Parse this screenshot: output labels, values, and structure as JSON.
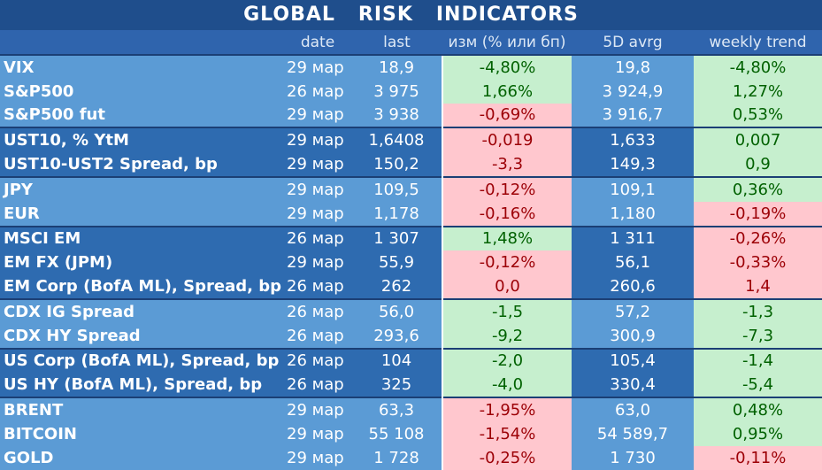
{
  "title": "GLOBAL   RISK   INDICATORS",
  "headers": {
    "name": "",
    "date": "date",
    "last": "last",
    "change": "изм (% или бп)",
    "avg5d": "5D avrg",
    "weekly": "weekly trend"
  },
  "rows": [
    {
      "name": "VIX",
      "date": "29 мар",
      "last": "18,9",
      "change": "-4,80%",
      "change_sign": "pos",
      "avg5d": "19,8",
      "weekly": "-4,80%",
      "weekly_sign": "pos",
      "group_start": true,
      "shade": "light"
    },
    {
      "name": "S&P500",
      "date": "26 мар",
      "last": "3 975",
      "change": "1,66%",
      "change_sign": "pos",
      "avg5d": "3 924,9",
      "weekly": "1,27%",
      "weekly_sign": "pos",
      "shade": "light"
    },
    {
      "name": "S&P500 fut",
      "date": "29 мар",
      "last": "3 938",
      "change": "-0,69%",
      "change_sign": "neg",
      "avg5d": "3 916,7",
      "weekly": "0,53%",
      "weekly_sign": "pos",
      "shade": "light"
    },
    {
      "name": "UST10, % YtM",
      "date": "29 мар",
      "last": "1,6408",
      "change": "-0,019",
      "change_sign": "neg",
      "avg5d": "1,633",
      "weekly": "0,007",
      "weekly_sign": "pos",
      "group_start": true,
      "shade": "dark"
    },
    {
      "name": "UST10-UST2 Spread, bp",
      "date": "29 мар",
      "last": "150,2",
      "change": "-3,3",
      "change_sign": "neg",
      "avg5d": "149,3",
      "weekly": "0,9",
      "weekly_sign": "pos",
      "shade": "dark"
    },
    {
      "name": "JPY",
      "date": "29 мар",
      "last": "109,5",
      "change": "-0,12%",
      "change_sign": "neg",
      "avg5d": "109,1",
      "weekly": "0,36%",
      "weekly_sign": "pos",
      "group_start": true,
      "shade": "light"
    },
    {
      "name": "EUR",
      "date": "29 мар",
      "last": "1,178",
      "change": "-0,16%",
      "change_sign": "neg",
      "avg5d": "1,180",
      "weekly": "-0,19%",
      "weekly_sign": "neg",
      "shade": "light"
    },
    {
      "name": "MSCI EM",
      "date": "26 мар",
      "last": "1 307",
      "change": "1,48%",
      "change_sign": "pos",
      "avg5d": "1 311",
      "weekly": "-0,26%",
      "weekly_sign": "neg",
      "group_start": true,
      "shade": "dark"
    },
    {
      "name": "EM FX (JPM)",
      "date": "29 мар",
      "last": "55,9",
      "change": "-0,12%",
      "change_sign": "neg",
      "avg5d": "56,1",
      "weekly": "-0,33%",
      "weekly_sign": "neg",
      "shade": "dark"
    },
    {
      "name": "EM Corp (BofA ML), Spread, bp",
      "date": "26 мар",
      "last": "262",
      "change": "0,0",
      "change_sign": "neg",
      "avg5d": "260,6",
      "weekly": "1,4",
      "weekly_sign": "neg",
      "shade": "dark"
    },
    {
      "name": "CDX IG Spread",
      "date": "26 мар",
      "last": "56,0",
      "change": "-1,5",
      "change_sign": "pos",
      "avg5d": "57,2",
      "weekly": "-1,3",
      "weekly_sign": "pos",
      "group_start": true,
      "shade": "light"
    },
    {
      "name": "CDX HY Spread",
      "date": "26 мар",
      "last": "293,6",
      "change": "-9,2",
      "change_sign": "pos",
      "avg5d": "300,9",
      "weekly": "-7,3",
      "weekly_sign": "pos",
      "shade": "light"
    },
    {
      "name": "US Corp (BofA ML), Spread, bp",
      "date": "26 мар",
      "last": "104",
      "change": "-2,0",
      "change_sign": "pos",
      "avg5d": "105,4",
      "weekly": "-1,4",
      "weekly_sign": "pos",
      "group_start": true,
      "shade": "dark"
    },
    {
      "name": "US HY (BofA ML), Spread, bp",
      "date": "26 мар",
      "last": "325",
      "change": "-4,0",
      "change_sign": "pos",
      "avg5d": "330,4",
      "weekly": "-5,4",
      "weekly_sign": "pos",
      "shade": "dark"
    },
    {
      "name": "BRENT",
      "date": "29 мар",
      "last": "63,3",
      "change": "-1,95%",
      "change_sign": "neg",
      "avg5d": "63,0",
      "weekly": "0,48%",
      "weekly_sign": "pos",
      "group_start": true,
      "shade": "light"
    },
    {
      "name": "BITCOIN",
      "date": "29 мар",
      "last": "55 108",
      "change": "-1,54%",
      "change_sign": "neg",
      "avg5d": "54 589,7",
      "weekly": "0,95%",
      "weekly_sign": "pos",
      "shade": "light"
    },
    {
      "name": "GOLD",
      "date": "29 мар",
      "last": "1 728",
      "change": "-0,25%",
      "change_sign": "neg",
      "avg5d": "1 730",
      "weekly": "-0,11%",
      "weekly_sign": "neg",
      "shade": "light"
    }
  ]
}
